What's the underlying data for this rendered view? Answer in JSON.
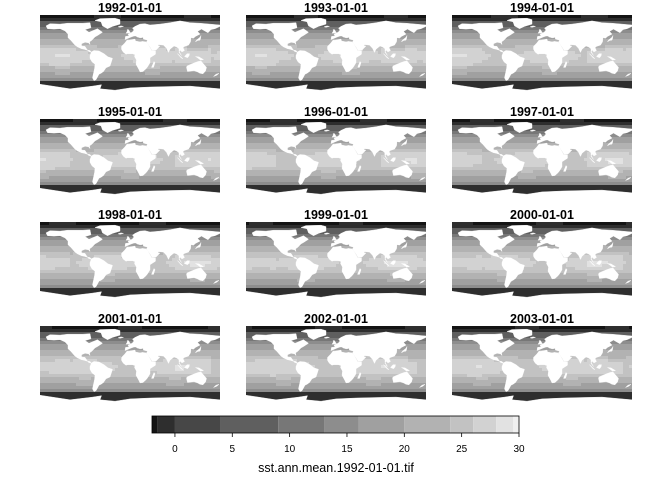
{
  "chart_data": {
    "type": "heatmap",
    "variable": "sst.ann.mean",
    "panels": [
      {
        "title": "1992-01-01"
      },
      {
        "title": "1993-01-01"
      },
      {
        "title": "1994-01-01"
      },
      {
        "title": "1995-01-01"
      },
      {
        "title": "1996-01-01"
      },
      {
        "title": "1997-01-01"
      },
      {
        "title": "1998-01-01"
      },
      {
        "title": "1999-01-01"
      },
      {
        "title": "2000-01-01"
      },
      {
        "title": "2001-01-01"
      },
      {
        "title": "2002-01-01"
      },
      {
        "title": "2003-01-01"
      }
    ],
    "grid_layout": {
      "rows": 4,
      "cols": 3
    },
    "color_scale": {
      "title": "sst.ann.mean.1992-01-01.tif",
      "min": -2,
      "max": 30,
      "ticks": [
        0,
        5,
        10,
        15,
        20,
        25,
        30
      ],
      "breaks": [
        -2,
        -1.5,
        0,
        4,
        9,
        13,
        16,
        20,
        24,
        26,
        28,
        29.5,
        30
      ],
      "colors": [
        "#141414",
        "#2e2e2e",
        "#474747",
        "#5f5f5f",
        "#777777",
        "#8d8d8d",
        "#a0a0a0",
        "#b2b2b2",
        "#c2c2c2",
        "#d2d2d2",
        "#e2e2e2",
        "#f0f0f0"
      ],
      "land_color": "#ffffff"
    }
  }
}
